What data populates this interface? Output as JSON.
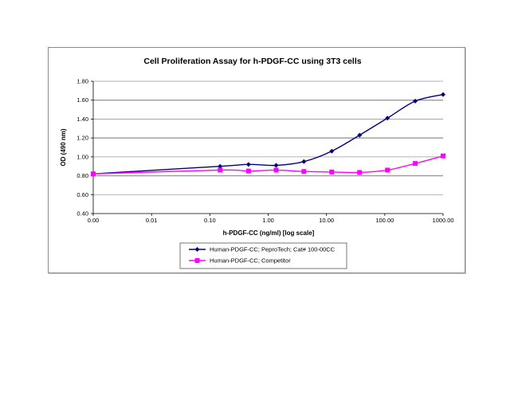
{
  "chart_data": {
    "type": "line",
    "title": "Cell Proliferation Assay for h-PDGF-CC using 3T3 cells",
    "xlabel": "h-PDGF-CC (ng/ml) [log scale]",
    "ylabel": "OD (490 nm)",
    "x_scale": "log",
    "x_tick_labels": [
      "0.00",
      "0.01",
      "0.10",
      "1.00",
      "10.00",
      "100.00",
      "1000.00"
    ],
    "x_tick_values": [
      0.001,
      0.01,
      0.1,
      1,
      10,
      100,
      1000
    ],
    "y_tick_labels": [
      "0.40",
      "0.60",
      "0.80",
      "1.00",
      "1.20",
      "1.40",
      "1.60",
      "1.80"
    ],
    "y_tick_values": [
      0.4,
      0.6,
      0.8,
      1.0,
      1.2,
      1.4,
      1.6,
      1.8
    ],
    "xlim": [
      0.001,
      1000
    ],
    "ylim": [
      0.4,
      1.8
    ],
    "grid": "horizontal",
    "legend_position": "bottom",
    "x": [
      0.001,
      0.15,
      0.46,
      1.37,
      4.1,
      12.3,
      37,
      111,
      333,
      1000
    ],
    "series": [
      {
        "name": "Human-PDGF-CC; PeproTech; Cat# 100-00CC",
        "color": "#000080",
        "marker": "diamond",
        "values": [
          0.82,
          0.9,
          0.92,
          0.91,
          0.95,
          1.06,
          1.23,
          1.41,
          1.59,
          1.66
        ]
      },
      {
        "name": "Human-PDGF-CC; Competitor",
        "color": "#FF00FF",
        "marker": "square",
        "values": [
          0.82,
          0.86,
          0.85,
          0.86,
          0.845,
          0.84,
          0.835,
          0.86,
          0.93,
          1.01
        ]
      }
    ]
  }
}
